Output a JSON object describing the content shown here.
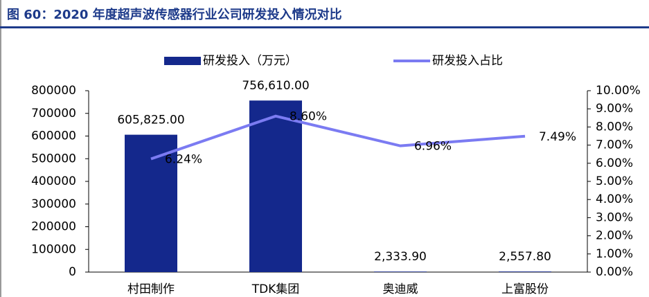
{
  "chart_data": {
    "type": "bar_line",
    "title": "图 60：2020 年度超声波传感器行业公司研发投入情况对比",
    "categories": [
      "村田制作",
      "TDK集团",
      "奥迪威",
      "上富股份"
    ],
    "series": [
      {
        "name": "研发投入（万元）",
        "type": "bar",
        "color": "#14288c",
        "values": [
          605825,
          756610,
          2333.9,
          2557.8
        ],
        "value_labels": [
          "605,825.00",
          "756,610.00",
          "2,333.90",
          "2,557.80"
        ]
      },
      {
        "name": "研发投入占比",
        "type": "line",
        "axis": "y2",
        "color": "#7b7bf2",
        "values": [
          6.24,
          8.6,
          6.96,
          7.49
        ],
        "value_labels": [
          "6.24%",
          "8.60%",
          "6.96%",
          "7.49%"
        ]
      }
    ],
    "ylim": [
      0,
      800000
    ],
    "yticks": [
      0,
      100000,
      200000,
      300000,
      400000,
      500000,
      600000,
      700000,
      800000
    ],
    "y2lim": [
      0,
      10
    ],
    "y2ticks": [
      {
        "value": 0,
        "label": "0.00%"
      },
      {
        "value": 1,
        "label": "1.00%"
      },
      {
        "value": 2,
        "label": "2.00%"
      },
      {
        "value": 3,
        "label": "3.00%"
      },
      {
        "value": 4,
        "label": "4.00%"
      },
      {
        "value": 5,
        "label": "5.00%"
      },
      {
        "value": 6,
        "label": "6.00%"
      },
      {
        "value": 7,
        "label": "7.00%"
      },
      {
        "value": 8,
        "label": "8.00%"
      },
      {
        "value": 9,
        "label": "9.00%"
      },
      {
        "value": 10,
        "label": "10.00%"
      }
    ],
    "legend": "top"
  }
}
